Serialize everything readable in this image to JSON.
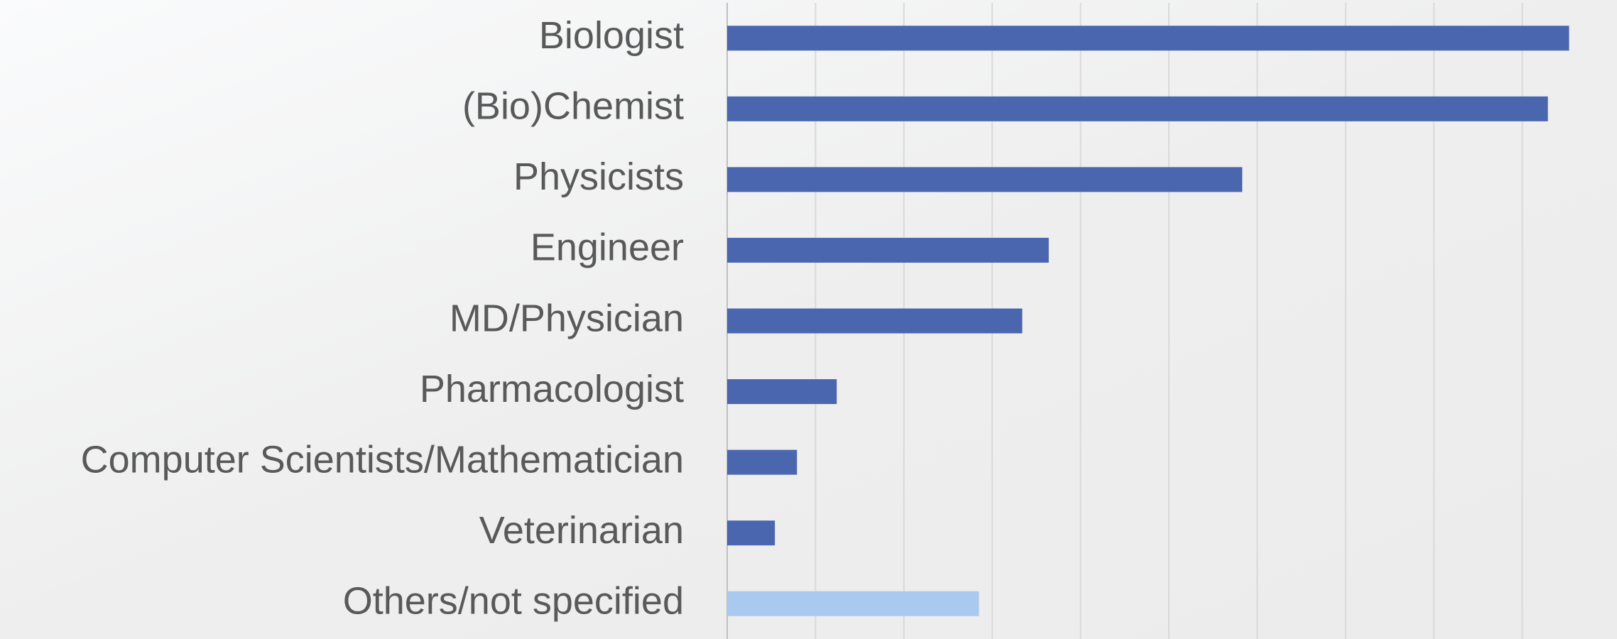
{
  "chart_data": {
    "type": "barh",
    "categories": [
      "Biologist",
      "(Bio)Chemist",
      "Physicists",
      "Engineer",
      "MD/Physician",
      "Pharmacologist",
      "Computer Scientists/Mathematician",
      "Veterinarian",
      "Others/not specified"
    ],
    "values": [
      9.53,
      9.29,
      5.83,
      3.64,
      3.34,
      1.24,
      0.79,
      0.54,
      2.85
    ],
    "colors": [
      "#4a66ae",
      "#4a66ae",
      "#4a66ae",
      "#4a66ae",
      "#4a66ae",
      "#4a66ae",
      "#4a66ae",
      "#4a66ae",
      "#a9c9ee"
    ],
    "xlim": [
      0,
      10
    ],
    "xticks": [
      0,
      1,
      2,
      3,
      4,
      5,
      6,
      7,
      8,
      9
    ],
    "grid": true
  }
}
